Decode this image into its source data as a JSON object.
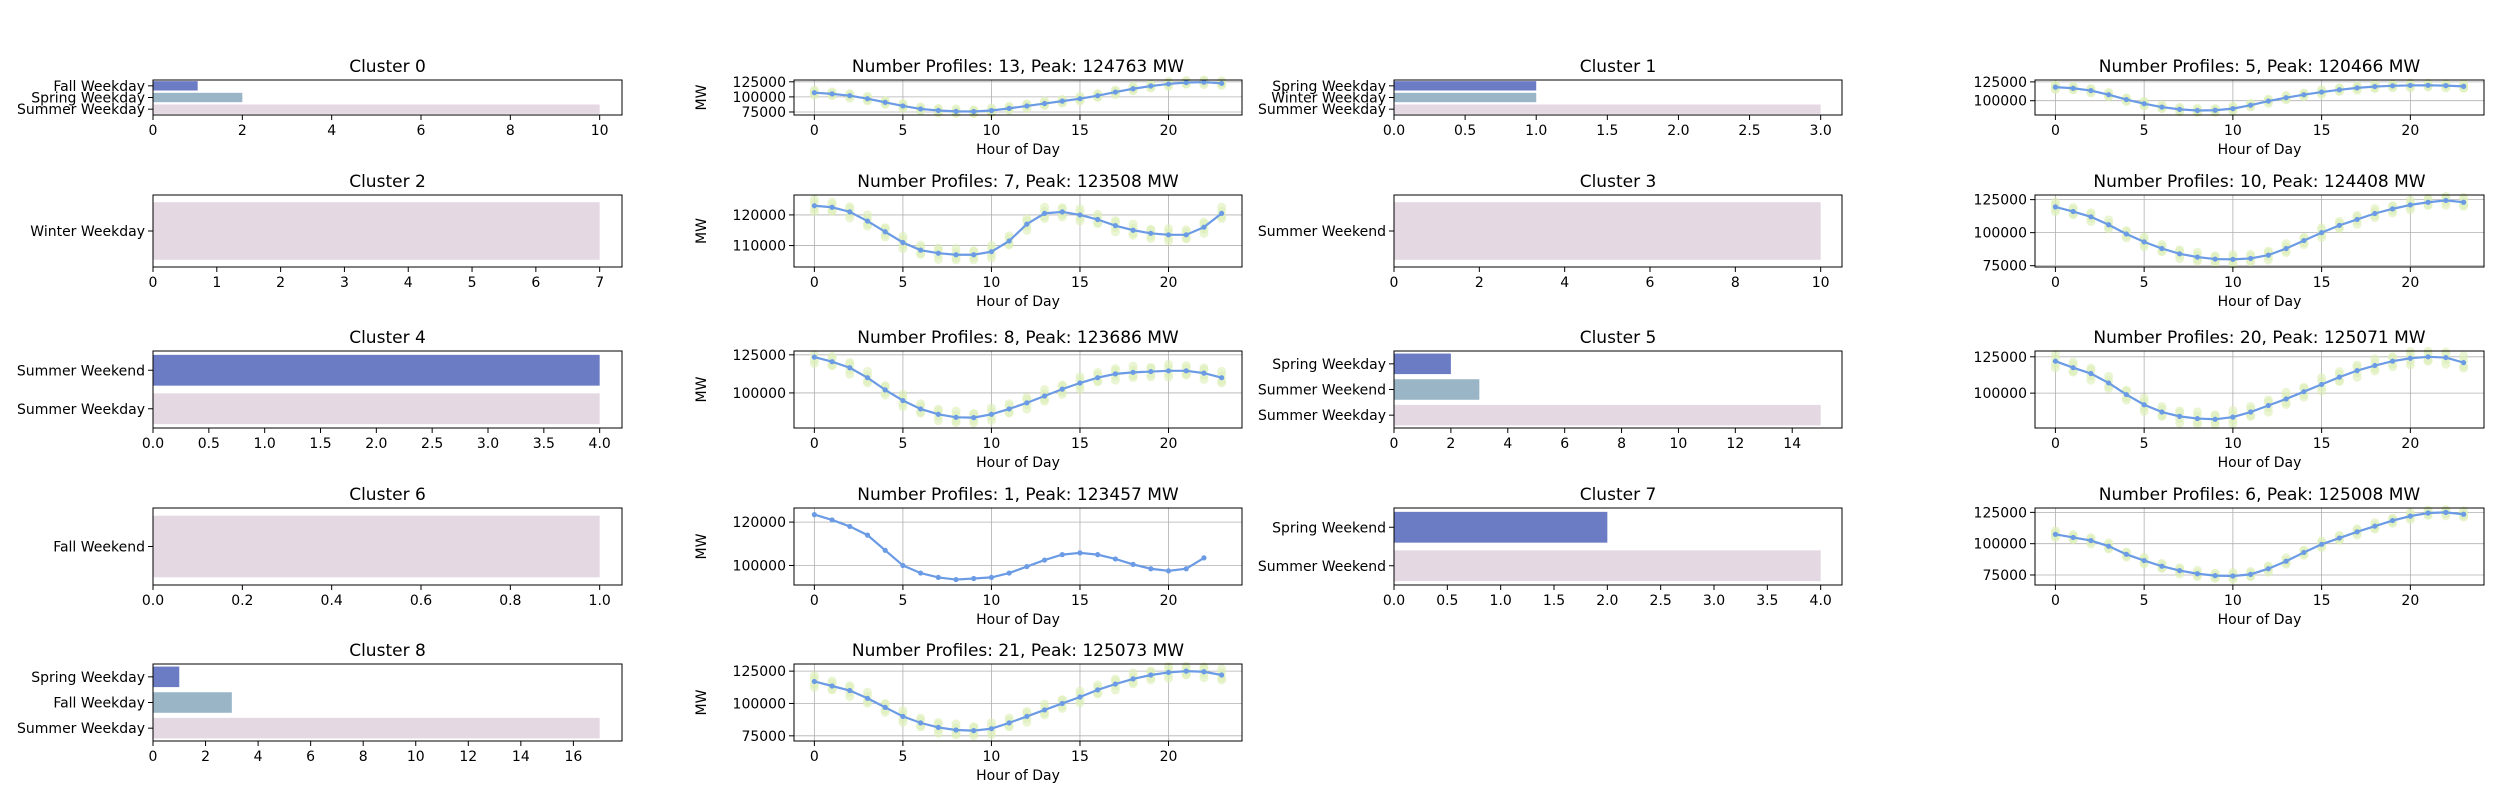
{
  "colors": {
    "bar_palette": [
      "#6b7bc4",
      "#99b5c6",
      "#e4d8e3"
    ],
    "line": "#6b9be4",
    "samples": "#dcefb6",
    "grid": "#b0b0b0",
    "spine": "#000000"
  },
  "charts": [
    {
      "type": "barh",
      "title": "Cluster 0",
      "categories": [
        "Fall Weekday",
        "Spring Weekday",
        "Summer Weekday"
      ],
      "values": [
        1,
        2,
        10
      ],
      "xlim": [
        0,
        10.5
      ],
      "xticks": [
        0,
        2,
        4,
        6,
        8,
        10
      ]
    },
    {
      "type": "line",
      "title": "Number Profiles: 13, Peak: 124763 MW",
      "ylabel": "MW",
      "xlabel": "Hour of Day",
      "x": [
        0,
        1,
        2,
        3,
        4,
        5,
        6,
        7,
        8,
        9,
        10,
        11,
        12,
        13,
        14,
        15,
        16,
        17,
        18,
        19,
        20,
        21,
        22,
        23
      ],
      "y": [
        107000,
        105000,
        102000,
        97000,
        91000,
        85000,
        80000,
        77500,
        76000,
        75800,
        77500,
        81000,
        85000,
        89000,
        93000,
        97000,
        102000,
        108000,
        113500,
        118000,
        121500,
        123800,
        124500,
        122500
      ],
      "ylim": [
        70000,
        128000
      ],
      "yticks": [
        75000,
        100000,
        125000
      ],
      "xticks": [
        0,
        5,
        10,
        15,
        20
      ],
      "xlim": [
        -1.15,
        24.15
      ],
      "spread": 4500
    },
    {
      "type": "barh",
      "title": "Cluster 1",
      "categories": [
        "Spring Weekday",
        "Winter Weekday",
        "Summer Weekday"
      ],
      "values": [
        1,
        1,
        3
      ],
      "xlim": [
        0,
        3.15
      ],
      "xticks": [
        0.0,
        0.5,
        1.0,
        1.5,
        2.0,
        2.5,
        3.0
      ]
    },
    {
      "type": "line",
      "title": "Number Profiles: 5, Peak: 120466 MW",
      "ylabel": "",
      "xlabel": "Hour of Day",
      "x": [
        0,
        1,
        2,
        3,
        4,
        5,
        6,
        7,
        8,
        9,
        10,
        11,
        12,
        13,
        14,
        15,
        16,
        17,
        18,
        19,
        20,
        21,
        22,
        23
      ],
      "y": [
        118000,
        116500,
        113500,
        108000,
        101500,
        96000,
        91500,
        88500,
        87000,
        87300,
        89500,
        94000,
        99500,
        104000,
        108000,
        111500,
        114500,
        117000,
        118800,
        119800,
        120300,
        120466,
        120000,
        119000
      ],
      "ylim": [
        81000,
        127500
      ],
      "yticks": [
        100000,
        125000
      ],
      "xticks": [
        0,
        5,
        10,
        15,
        20
      ],
      "xlim": [
        -1.15,
        24.15
      ],
      "spread": 3500
    },
    {
      "type": "barh",
      "title": "Cluster 2",
      "categories": [
        "Winter Weekday"
      ],
      "values": [
        7
      ],
      "xlim": [
        0,
        7.35
      ],
      "xticks": [
        0,
        1,
        2,
        3,
        4,
        5,
        6,
        7
      ]
    },
    {
      "type": "line",
      "title": "Number Profiles: 7, Peak: 123508 MW",
      "ylabel": "MW",
      "xlabel": "Hour of Day",
      "x": [
        0,
        1,
        2,
        3,
        4,
        5,
        6,
        7,
        8,
        9,
        10,
        11,
        12,
        13,
        14,
        15,
        16,
        17,
        18,
        19,
        20,
        21,
        22,
        23
      ],
      "y": [
        123000,
        122500,
        121000,
        118000,
        114500,
        111000,
        108500,
        107500,
        107000,
        107000,
        108000,
        111500,
        117000,
        120500,
        121000,
        120000,
        118500,
        116500,
        115000,
        114000,
        113500,
        113500,
        116000,
        120500
      ],
      "ylim": [
        103000,
        126500
      ],
      "yticks": [
        110000,
        120000
      ],
      "xticks": [
        0,
        5,
        10,
        15,
        20
      ],
      "xlim": [
        -1.15,
        24.15
      ],
      "spread": 2200
    },
    {
      "type": "barh",
      "title": "Cluster 3",
      "categories": [
        "Summer Weekend"
      ],
      "values": [
        10
      ],
      "xlim": [
        0,
        10.5
      ],
      "xticks": [
        0,
        2,
        4,
        6,
        8,
        10
      ]
    },
    {
      "type": "line",
      "title": "Number Profiles: 10, Peak: 124408 MW",
      "ylabel": "",
      "xlabel": "Hour of Day",
      "x": [
        0,
        1,
        2,
        3,
        4,
        5,
        6,
        7,
        8,
        9,
        10,
        11,
        12,
        13,
        14,
        15,
        16,
        17,
        18,
        19,
        20,
        21,
        22,
        23
      ],
      "y": [
        119500,
        116000,
        112000,
        106000,
        99000,
        93000,
        88000,
        84000,
        81500,
        80000,
        79800,
        80500,
        83000,
        88000,
        94000,
        100000,
        105500,
        110000,
        114500,
        118000,
        121000,
        123000,
        124400,
        123000
      ],
      "ylim": [
        74000,
        128500
      ],
      "yticks": [
        75000,
        100000,
        125000
      ],
      "xticks": [
        0,
        5,
        10,
        15,
        20
      ],
      "xlim": [
        -1.15,
        24.15
      ],
      "spread": 4000
    },
    {
      "type": "barh",
      "title": "Cluster 4",
      "categories": [
        "Summer Weekend",
        "Summer Weekday"
      ],
      "values": [
        4,
        4
      ],
      "xlim": [
        0,
        4.2
      ],
      "xticks": [
        0.0,
        0.5,
        1.0,
        1.5,
        2.0,
        2.5,
        3.0,
        3.5,
        4.0
      ]
    },
    {
      "type": "line",
      "title": "Number Profiles: 8, Peak: 123686 MW",
      "ylabel": "MW",
      "xlabel": "Hour of Day",
      "x": [
        0,
        1,
        2,
        3,
        4,
        5,
        6,
        7,
        8,
        9,
        10,
        11,
        12,
        13,
        14,
        15,
        16,
        17,
        18,
        19,
        20,
        21,
        22,
        23
      ],
      "y": [
        123500,
        120500,
        116500,
        110000,
        102000,
        95000,
        89500,
        86000,
        84000,
        83800,
        86000,
        89500,
        93500,
        98000,
        102500,
        106500,
        110000,
        112500,
        113500,
        114000,
        114500,
        114500,
        113000,
        110000
      ],
      "ylim": [
        77000,
        127500
      ],
      "yticks": [
        100000,
        125000
      ],
      "xticks": [
        0,
        5,
        10,
        15,
        20
      ],
      "xlim": [
        -1.15,
        24.15
      ],
      "spread": 4500
    },
    {
      "type": "barh",
      "title": "Cluster 5",
      "categories": [
        "Spring Weekday",
        "Summer Weekend",
        "Summer Weekday"
      ],
      "values": [
        2,
        3,
        15
      ],
      "xlim": [
        0,
        15.75
      ],
      "xticks": [
        0,
        2,
        4,
        6,
        8,
        10,
        12,
        14
      ]
    },
    {
      "type": "line",
      "title": "Number Profiles: 20, Peak: 125071 MW",
      "ylabel": "",
      "xlabel": "Hour of Day",
      "x": [
        0,
        1,
        2,
        3,
        4,
        5,
        6,
        7,
        8,
        9,
        10,
        11,
        12,
        13,
        14,
        15,
        16,
        17,
        18,
        19,
        20,
        21,
        22,
        23
      ],
      "y": [
        122000,
        117500,
        113500,
        107000,
        99000,
        92000,
        87000,
        84000,
        82500,
        82000,
        83500,
        87000,
        91500,
        96000,
        101000,
        106000,
        111000,
        115500,
        119000,
        122000,
        124000,
        125000,
        124500,
        121000
      ],
      "ylim": [
        76000,
        129000
      ],
      "yticks": [
        100000,
        125000
      ],
      "xticks": [
        0,
        5,
        10,
        15,
        20
      ],
      "xlim": [
        -1.15,
        24.15
      ],
      "spread": 5000
    },
    {
      "type": "barh",
      "title": "Cluster 6",
      "categories": [
        "Fall Weekend"
      ],
      "values": [
        1
      ],
      "xlim": [
        0,
        1.05
      ],
      "xticks": [
        0.0,
        0.2,
        0.4,
        0.6,
        0.8,
        1.0
      ]
    },
    {
      "type": "line",
      "title": "Number Profiles: 1, Peak: 123457 MW",
      "ylabel": "MW",
      "xlabel": "Hour of Day",
      "x": [
        0,
        1,
        2,
        3,
        4,
        5,
        6,
        7,
        8,
        9,
        10,
        11,
        12,
        13,
        14,
        15,
        16,
        17,
        18,
        19,
        20,
        21,
        22,
        23
      ],
      "y": [
        123457,
        121000,
        118000,
        114000,
        107000,
        100000,
        96500,
        94500,
        93500,
        94000,
        94500,
        96500,
        99500,
        102500,
        105000,
        105800,
        105000,
        103000,
        100500,
        98500,
        97500,
        98500,
        103500,
        null
      ],
      "ylim": [
        91000,
        126500
      ],
      "yticks": [
        100000,
        120000
      ],
      "xticks": [
        0,
        5,
        10,
        15,
        20
      ],
      "xlim": [
        -1.15,
        24.15
      ],
      "spread": 0
    },
    {
      "type": "barh",
      "title": "Cluster 7",
      "categories": [
        "Spring Weekend",
        "Summer Weekend"
      ],
      "values": [
        2,
        4
      ],
      "xlim": [
        0,
        4.2
      ],
      "xticks": [
        0.0,
        0.5,
        1.0,
        1.5,
        2.0,
        2.5,
        3.0,
        3.5,
        4.0
      ]
    },
    {
      "type": "line",
      "title": "Number Profiles: 6, Peak: 125008 MW",
      "ylabel": "",
      "xlabel": "Hour of Day",
      "x": [
        0,
        1,
        2,
        3,
        4,
        5,
        6,
        7,
        8,
        9,
        10,
        11,
        12,
        13,
        14,
        15,
        16,
        17,
        18,
        19,
        20,
        21,
        22,
        23
      ],
      "y": [
        107500,
        105000,
        102500,
        98000,
        91500,
        86500,
        82000,
        78500,
        76000,
        74500,
        74200,
        75500,
        80000,
        86000,
        93000,
        99500,
        104500,
        109500,
        114000,
        118500,
        122000,
        124500,
        125008,
        123500
      ],
      "ylim": [
        67000,
        128500
      ],
      "yticks": [
        75000,
        100000,
        125000
      ],
      "xticks": [
        0,
        5,
        10,
        15,
        20
      ],
      "xlim": [
        -1.15,
        24.15
      ],
      "spread": 3000
    },
    {
      "type": "barh",
      "title": "Cluster 8",
      "categories": [
        "Spring Weekday",
        "Fall Weekday",
        "Summer Weekday"
      ],
      "values": [
        1,
        3,
        17
      ],
      "xlim": [
        0,
        17.85
      ],
      "xticks": [
        0,
        2,
        4,
        6,
        8,
        10,
        12,
        14,
        16
      ]
    },
    {
      "type": "line",
      "title": "Number Profiles: 21, Peak: 125073 MW",
      "ylabel": "MW",
      "xlabel": "Hour of Day",
      "x": [
        0,
        1,
        2,
        3,
        4,
        5,
        6,
        7,
        8,
        9,
        10,
        11,
        12,
        13,
        14,
        15,
        16,
        17,
        18,
        19,
        20,
        21,
        22,
        23
      ],
      "y": [
        117000,
        113500,
        110000,
        104000,
        97000,
        90000,
        85000,
        81500,
        79500,
        79000,
        80500,
        85000,
        90000,
        95000,
        100000,
        105000,
        110500,
        115000,
        119000,
        122000,
        124000,
        125000,
        124500,
        122000
      ],
      "ylim": [
        71000,
        130500
      ],
      "yticks": [
        75000,
        100000,
        125000
      ],
      "xticks": [
        0,
        5,
        10,
        15,
        20
      ],
      "xlim": [
        -1.15,
        24.15
      ],
      "spread": 5000
    }
  ]
}
